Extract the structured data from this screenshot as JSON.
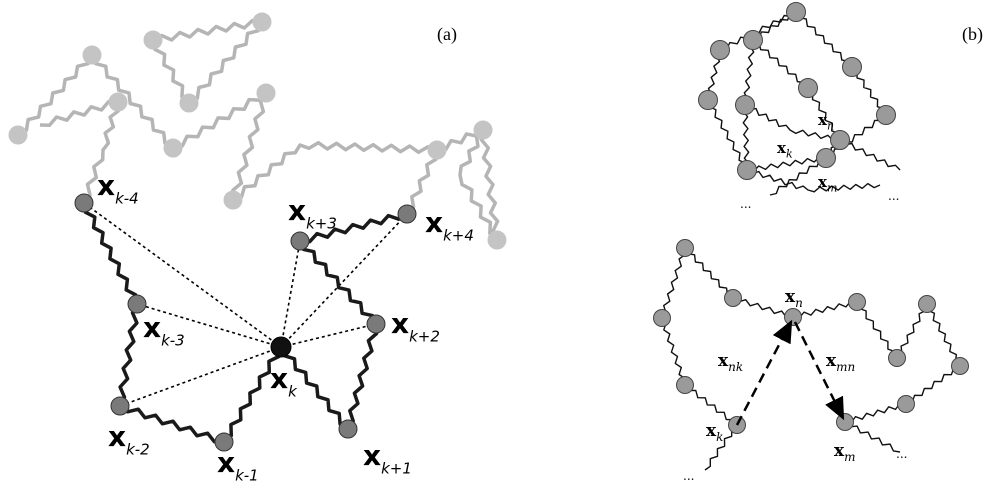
{
  "panel_a": {
    "tag": "(a)",
    "labels": [
      {
        "base": "x",
        "sub": "k-4"
      },
      {
        "base": "x",
        "sub": "k-3"
      },
      {
        "base": "x",
        "sub": "k-2"
      },
      {
        "base": "x",
        "sub": "k-1"
      },
      {
        "base": "x",
        "sub": "k"
      },
      {
        "base": "x",
        "sub": "k+1"
      },
      {
        "base": "x",
        "sub": "k+2"
      },
      {
        "base": "x",
        "sub": "k+3"
      },
      {
        "base": "x",
        "sub": "k+4"
      }
    ]
  },
  "panel_b": {
    "tag": "(b)",
    "top": {
      "labels": [
        {
          "base": "x",
          "sub": "n"
        },
        {
          "base": "x",
          "sub": "k"
        },
        {
          "base": "x",
          "sub": "m"
        }
      ],
      "ellipses": [
        "...",
        "..."
      ]
    },
    "bottom": {
      "labels": [
        {
          "base": "x",
          "sub": "n"
        },
        {
          "base": "x",
          "sub": "nk"
        },
        {
          "base": "x",
          "sub": "mn"
        },
        {
          "base": "x",
          "sub": "k"
        },
        {
          "base": "x",
          "sub": "m"
        }
      ],
      "ellipses": [
        "...",
        "..."
      ]
    }
  }
}
